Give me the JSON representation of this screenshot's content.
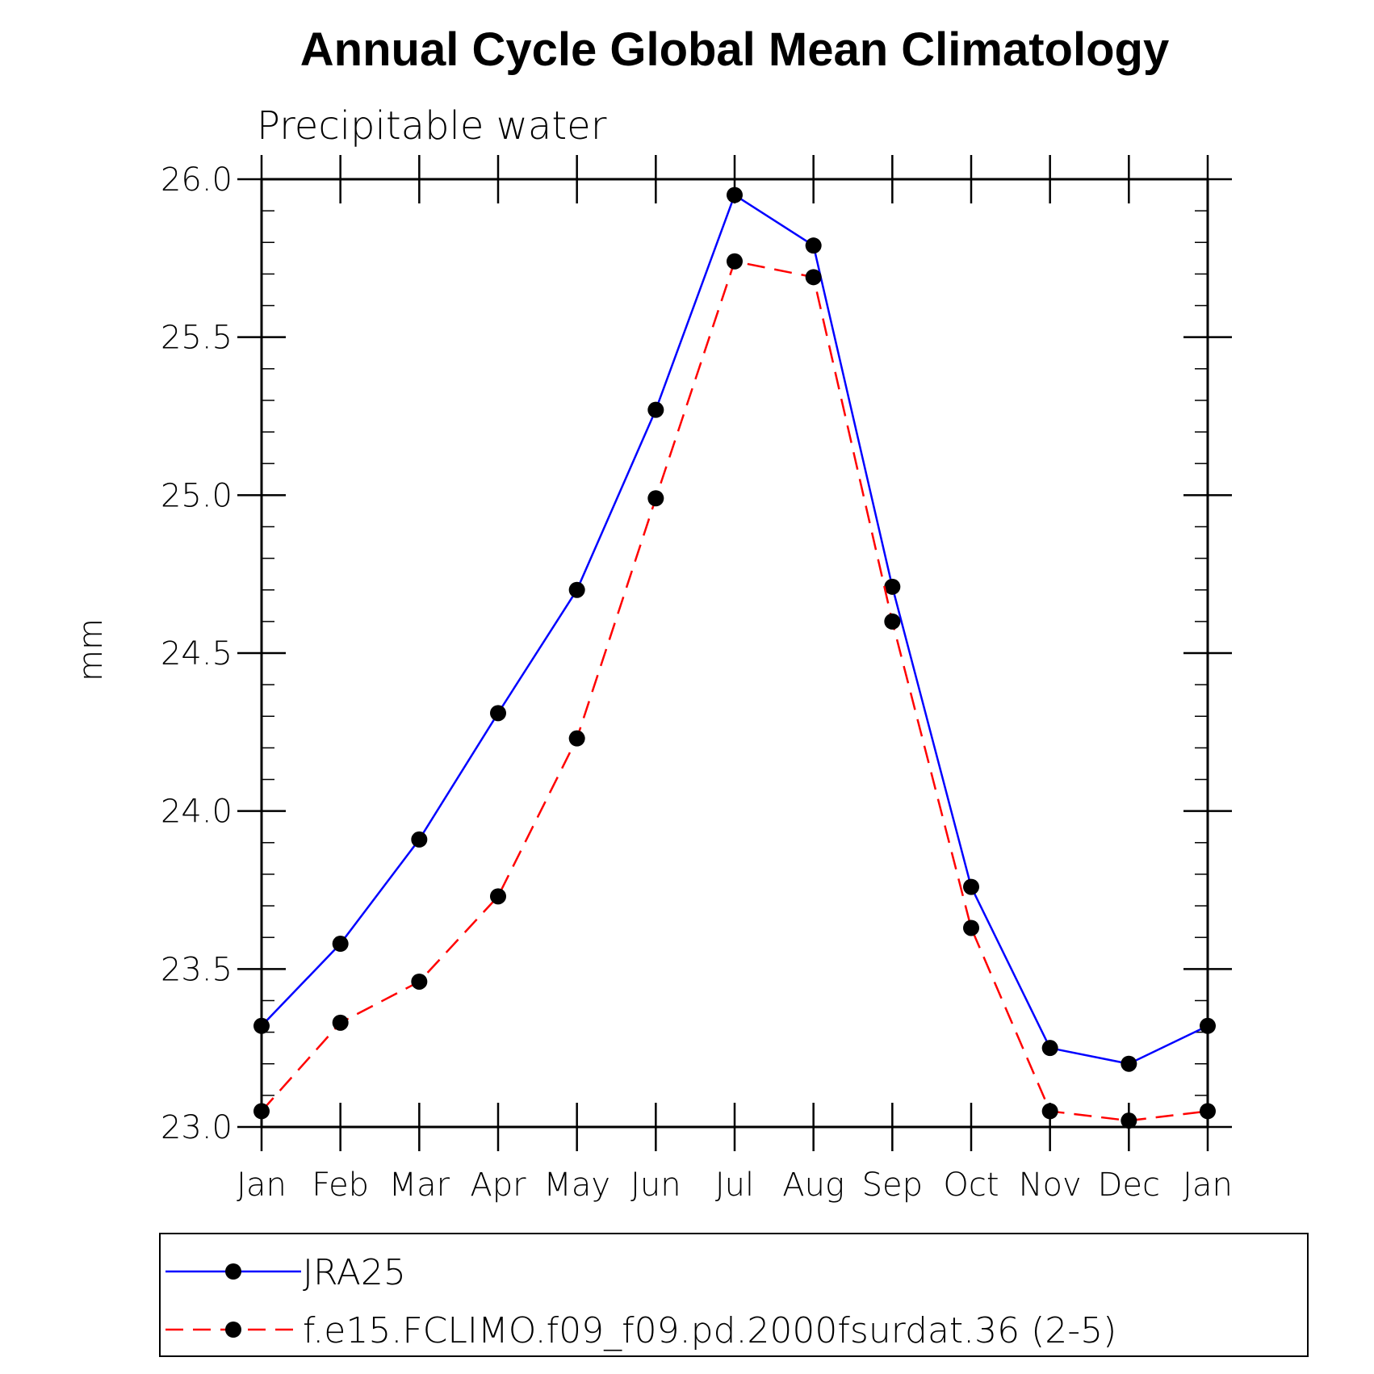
{
  "chart_data": {
    "type": "line",
    "title": "Annual Cycle Global Mean Climatology",
    "subtitle": "Precipitable water",
    "ylabel": "mm",
    "xlabel": "",
    "categories": [
      "Jan",
      "Feb",
      "Mar",
      "Apr",
      "May",
      "Jun",
      "Jul",
      "Aug",
      "Sep",
      "Oct",
      "Nov",
      "Dec",
      "Jan"
    ],
    "ylim": [
      23.0,
      26.0
    ],
    "yticks": [
      "23.0",
      "23.5",
      "24.0",
      "24.5",
      "25.0",
      "25.5",
      "26.0"
    ],
    "legend_position": "bottom",
    "series": [
      {
        "name": "JRA25",
        "color": "#0000ff",
        "line_style": "solid",
        "values": [
          23.32,
          23.58,
          23.91,
          24.31,
          24.7,
          25.27,
          25.95,
          25.79,
          24.71,
          23.76,
          23.25,
          23.2,
          23.32
        ]
      },
      {
        "name": "f.e15.FCLIMO.f09_f09.pd.2000fsurdat.36 (2-5)",
        "color": "#ff0000",
        "line_style": "dashed",
        "values": [
          23.05,
          23.33,
          23.46,
          23.73,
          24.23,
          24.99,
          25.74,
          25.69,
          24.6,
          23.63,
          23.05,
          23.02,
          23.05
        ]
      }
    ]
  }
}
